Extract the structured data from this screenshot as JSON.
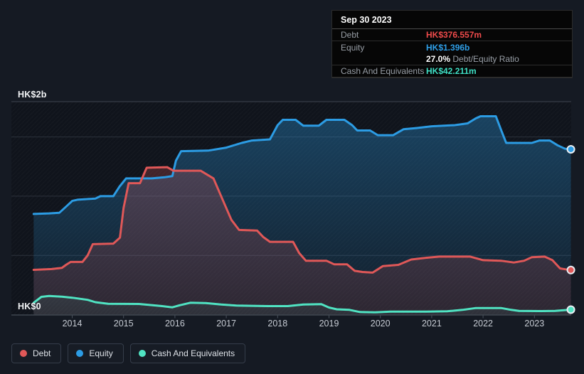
{
  "tooltip": {
    "date": "Sep 30 2023",
    "debt_label": "Debt",
    "debt_value": "HK$376.557m",
    "equity_label": "Equity",
    "equity_value": "HK$1.396b",
    "ratio_value": "27.0%",
    "ratio_label": "Debt/Equity Ratio",
    "cash_label": "Cash And Equivalents",
    "cash_value": "HK$42.211m"
  },
  "legend": {
    "debt": "Debt",
    "equity": "Equity",
    "cash": "Cash And Equivalents"
  },
  "axis": {
    "y_top_label": "HK$2b",
    "y_bottom_label": "HK$0",
    "years": [
      "2014",
      "2015",
      "2016",
      "2017",
      "2018",
      "2019",
      "2020",
      "2021",
      "2022",
      "2023"
    ]
  },
  "colors": {
    "debt": "#e05858",
    "equity": "#2c9ce4",
    "cash": "#50e3c2",
    "page_bg": "#151a23",
    "plot_bg": "#10141c",
    "grid": "#2c323c",
    "plot_border": "#3f4650",
    "tick": "#4a515c",
    "year_text": "#c6cbd3"
  },
  "chart_data": {
    "type": "area",
    "title": "Debt to Equity History",
    "x_unit": "year",
    "y_unit": "HK$ billions",
    "ylim": [
      0,
      2
    ],
    "xlim_data": [
      2013.25,
      2023.71
    ],
    "x_ticks": [
      2014,
      2015,
      2016,
      2017,
      2018,
      2019,
      2020,
      2021,
      2022,
      2023
    ],
    "gridline_values": [
      0,
      0.5,
      1.0,
      1.5
    ],
    "legend_position": "bottom-left",
    "series": [
      {
        "name": "Equity",
        "color": "#2c9ce4",
        "end_label": "HK$1.396b",
        "points": [
          [
            2013.25,
            0.85
          ],
          [
            2013.55,
            0.855
          ],
          [
            2013.75,
            0.86
          ],
          [
            2013.9,
            0.92
          ],
          [
            2014.0,
            0.96
          ],
          [
            2014.1,
            0.97
          ],
          [
            2014.45,
            0.98
          ],
          [
            2014.55,
            1.0
          ],
          [
            2014.8,
            1.0
          ],
          [
            2014.92,
            1.08
          ],
          [
            2015.05,
            1.15
          ],
          [
            2015.55,
            1.15
          ],
          [
            2015.8,
            1.16
          ],
          [
            2015.95,
            1.17
          ],
          [
            2016.02,
            1.3
          ],
          [
            2016.12,
            1.38
          ],
          [
            2016.65,
            1.385
          ],
          [
            2017.0,
            1.41
          ],
          [
            2017.3,
            1.45
          ],
          [
            2017.5,
            1.47
          ],
          [
            2017.85,
            1.48
          ],
          [
            2018.0,
            1.6
          ],
          [
            2018.1,
            1.645
          ],
          [
            2018.35,
            1.645
          ],
          [
            2018.5,
            1.595
          ],
          [
            2018.8,
            1.595
          ],
          [
            2018.95,
            1.645
          ],
          [
            2019.3,
            1.645
          ],
          [
            2019.45,
            1.6
          ],
          [
            2019.55,
            1.555
          ],
          [
            2019.8,
            1.555
          ],
          [
            2019.95,
            1.515
          ],
          [
            2020.25,
            1.515
          ],
          [
            2020.45,
            1.565
          ],
          [
            2020.7,
            1.575
          ],
          [
            2021.0,
            1.59
          ],
          [
            2021.45,
            1.6
          ],
          [
            2021.7,
            1.615
          ],
          [
            2021.85,
            1.655
          ],
          [
            2021.95,
            1.675
          ],
          [
            2022.25,
            1.675
          ],
          [
            2022.35,
            1.56
          ],
          [
            2022.45,
            1.45
          ],
          [
            2022.95,
            1.45
          ],
          [
            2023.1,
            1.47
          ],
          [
            2023.3,
            1.47
          ],
          [
            2023.45,
            1.43
          ],
          [
            2023.6,
            1.4
          ],
          [
            2023.71,
            1.396
          ]
        ]
      },
      {
        "name": "Debt",
        "color": "#e05858",
        "end_label": "HK$376.557m",
        "points": [
          [
            2013.25,
            0.378
          ],
          [
            2013.6,
            0.385
          ],
          [
            2013.8,
            0.395
          ],
          [
            2013.88,
            0.42
          ],
          [
            2013.97,
            0.445
          ],
          [
            2014.2,
            0.445
          ],
          [
            2014.3,
            0.5
          ],
          [
            2014.4,
            0.595
          ],
          [
            2014.8,
            0.6
          ],
          [
            2014.93,
            0.65
          ],
          [
            2015.0,
            0.9
          ],
          [
            2015.1,
            1.11
          ],
          [
            2015.32,
            1.11
          ],
          [
            2015.45,
            1.24
          ],
          [
            2015.85,
            1.245
          ],
          [
            2015.97,
            1.215
          ],
          [
            2016.5,
            1.215
          ],
          [
            2016.75,
            1.15
          ],
          [
            2016.95,
            0.95
          ],
          [
            2017.1,
            0.8
          ],
          [
            2017.25,
            0.715
          ],
          [
            2017.6,
            0.71
          ],
          [
            2017.72,
            0.655
          ],
          [
            2017.85,
            0.615
          ],
          [
            2018.3,
            0.615
          ],
          [
            2018.42,
            0.52
          ],
          [
            2018.55,
            0.455
          ],
          [
            2018.95,
            0.455
          ],
          [
            2019.1,
            0.425
          ],
          [
            2019.35,
            0.425
          ],
          [
            2019.5,
            0.37
          ],
          [
            2019.65,
            0.36
          ],
          [
            2019.85,
            0.355
          ],
          [
            2020.05,
            0.41
          ],
          [
            2020.35,
            0.42
          ],
          [
            2020.6,
            0.465
          ],
          [
            2020.9,
            0.48
          ],
          [
            2021.15,
            0.49
          ],
          [
            2021.75,
            0.49
          ],
          [
            2022.0,
            0.46
          ],
          [
            2022.35,
            0.455
          ],
          [
            2022.6,
            0.44
          ],
          [
            2022.8,
            0.455
          ],
          [
            2022.95,
            0.485
          ],
          [
            2023.2,
            0.49
          ],
          [
            2023.35,
            0.46
          ],
          [
            2023.5,
            0.39
          ],
          [
            2023.6,
            0.383
          ],
          [
            2023.71,
            0.3766
          ]
        ]
      },
      {
        "name": "Cash And Equivalents",
        "color": "#50e3c2",
        "end_label": "HK$42.211m",
        "points": [
          [
            2013.25,
            0.1
          ],
          [
            2013.4,
            0.15
          ],
          [
            2013.55,
            0.158
          ],
          [
            2013.8,
            0.152
          ],
          [
            2014.0,
            0.143
          ],
          [
            2014.3,
            0.125
          ],
          [
            2014.45,
            0.105
          ],
          [
            2014.7,
            0.092
          ],
          [
            2015.3,
            0.09
          ],
          [
            2015.75,
            0.072
          ],
          [
            2015.95,
            0.062
          ],
          [
            2016.1,
            0.08
          ],
          [
            2016.3,
            0.1
          ],
          [
            2016.6,
            0.098
          ],
          [
            2016.9,
            0.085
          ],
          [
            2017.2,
            0.077
          ],
          [
            2017.8,
            0.072
          ],
          [
            2018.2,
            0.072
          ],
          [
            2018.5,
            0.085
          ],
          [
            2018.85,
            0.088
          ],
          [
            2019.0,
            0.06
          ],
          [
            2019.15,
            0.045
          ],
          [
            2019.4,
            0.04
          ],
          [
            2019.6,
            0.022
          ],
          [
            2019.9,
            0.02
          ],
          [
            2020.2,
            0.025
          ],
          [
            2020.9,
            0.025
          ],
          [
            2021.3,
            0.028
          ],
          [
            2021.6,
            0.04
          ],
          [
            2021.85,
            0.055
          ],
          [
            2022.35,
            0.056
          ],
          [
            2022.55,
            0.04
          ],
          [
            2022.7,
            0.032
          ],
          [
            2023.1,
            0.03
          ],
          [
            2023.4,
            0.032
          ],
          [
            2023.71,
            0.0422
          ]
        ]
      }
    ]
  }
}
